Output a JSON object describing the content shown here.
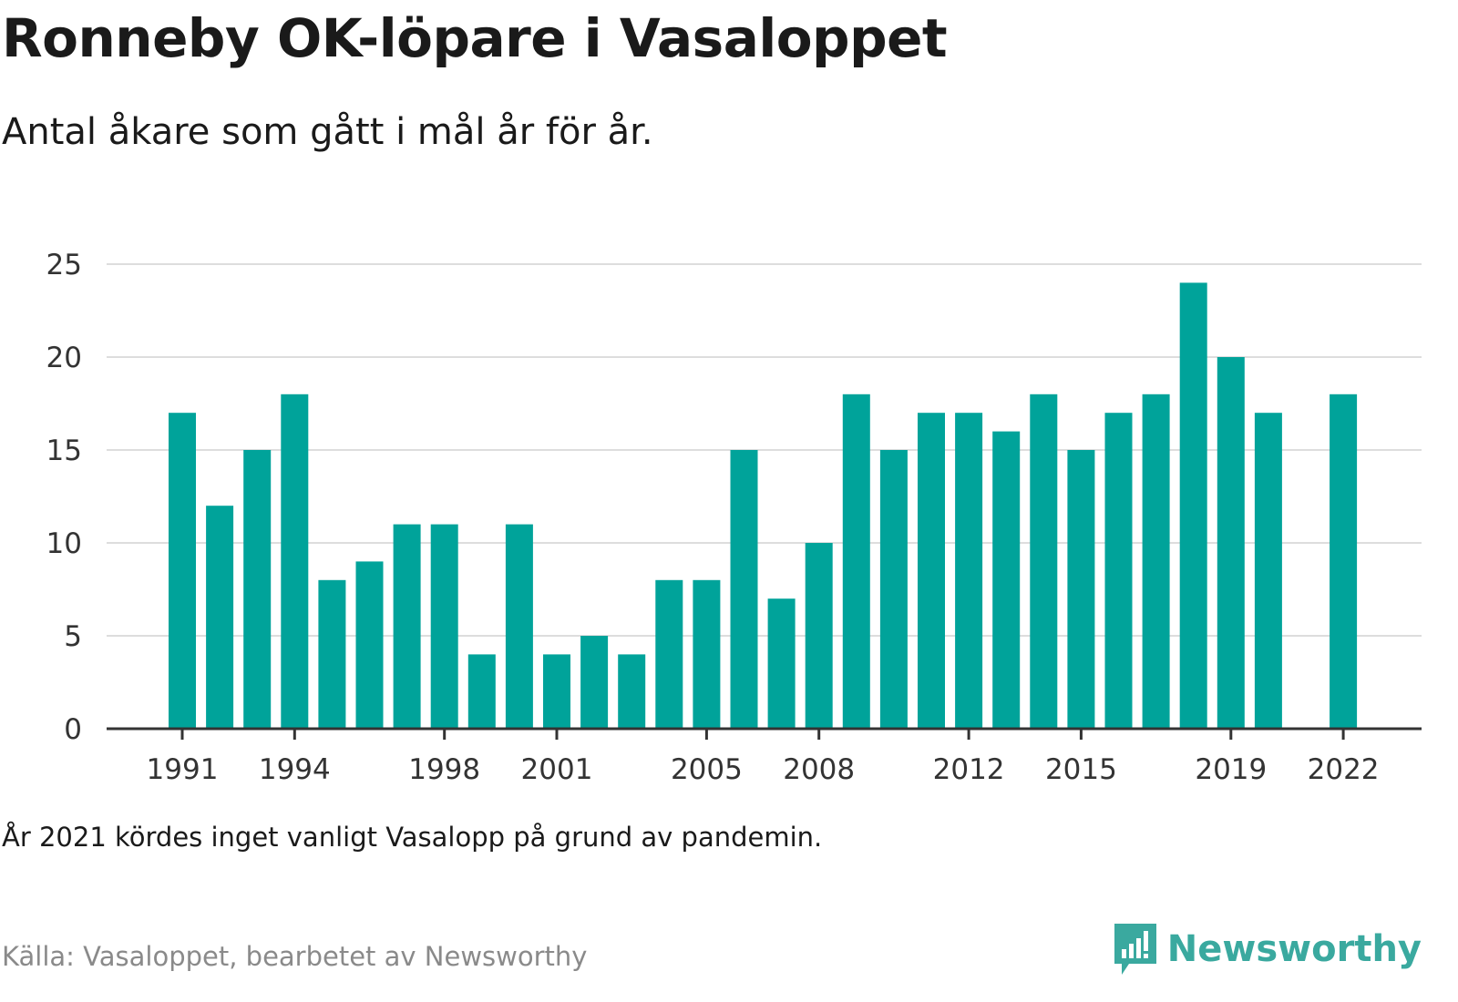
{
  "title": "Ronneby OK-löpare i Vasaloppet",
  "subtitle": "Antal åkare som gått i mål år för år.",
  "note": "År 2021 kördes inget vanligt Vasalopp på grund av pandemin.",
  "source": "Källa: Vasaloppet, bearbetet av Newsworthy",
  "brand": {
    "name": "Newsworthy",
    "color": "#3aa99f",
    "icon": "bar-chart-speech-bubble-icon"
  },
  "chart_data": {
    "type": "bar",
    "bar_color": "#00a39a",
    "grid": true,
    "ylim": [
      0,
      25
    ],
    "yticks": [
      0,
      5,
      10,
      15,
      20,
      25
    ],
    "xticks": [
      1991,
      1994,
      1998,
      2001,
      2005,
      2008,
      2012,
      2015,
      2019,
      2022
    ],
    "categories": [
      1991,
      1992,
      1993,
      1994,
      1995,
      1996,
      1997,
      1998,
      1999,
      2000,
      2001,
      2002,
      2003,
      2004,
      2005,
      2006,
      2007,
      2008,
      2009,
      2010,
      2011,
      2012,
      2013,
      2014,
      2015,
      2016,
      2017,
      2018,
      2019,
      2020,
      2021,
      2022
    ],
    "values": [
      17,
      12,
      15,
      18,
      8,
      9,
      11,
      11,
      4,
      11,
      4,
      5,
      4,
      8,
      8,
      15,
      7,
      10,
      18,
      15,
      17,
      17,
      16,
      18,
      15,
      17,
      18,
      24,
      20,
      17,
      null,
      18
    ]
  }
}
